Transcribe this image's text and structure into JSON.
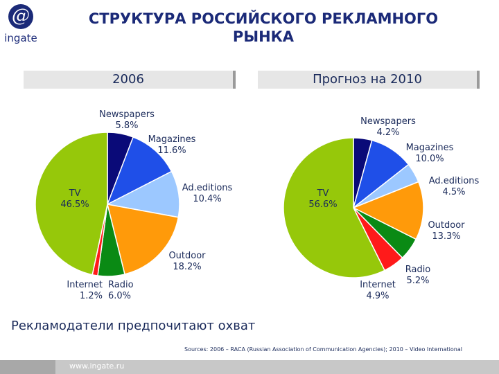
{
  "logo": {
    "symbol": "@",
    "text": "ingate"
  },
  "title": "СТРУКТУРА РОССИЙСКОГО РЕКЛАМНОГО РЫНКА",
  "tagline": "Рекламодатели предпочитают охват",
  "sources": "Sources: 2006 – RACA (Russian Association of Communication Agencies); 2010 – Video International",
  "footer": {
    "url": "www.ingate.ru"
  },
  "chart_data": [
    {
      "type": "pie",
      "title": "2006",
      "start_angle_deg": 0,
      "slices": [
        {
          "label": "Newspapers",
          "value": 5.8,
          "display": "5.8%",
          "color": "#0a0a78"
        },
        {
          "label": "Magazines",
          "value": 11.6,
          "display": "11.6%",
          "color": "#1f4fe8"
        },
        {
          "label": "Ad.editions",
          "value": 10.4,
          "display": "10.4%",
          "color": "#9cc8ff"
        },
        {
          "label": "Outdoor",
          "value": 18.2,
          "display": "18.2%",
          "color": "#ff9a0a"
        },
        {
          "label": "Radio",
          "value": 6.0,
          "display": "6.0%",
          "color": "#0a8a14"
        },
        {
          "label": "Internet",
          "value": 1.2,
          "display": "1.2%",
          "color": "#ff1a1a"
        },
        {
          "label": "TV",
          "value": 46.5,
          "display": "46.5%",
          "color": "#96c80a"
        }
      ]
    },
    {
      "type": "pie",
      "title": "Прогноз на 2010",
      "start_angle_deg": 0,
      "slices": [
        {
          "label": "Newspapers",
          "value": 4.2,
          "display": "4.2%",
          "color": "#0a0a78"
        },
        {
          "label": "Magazines",
          "value": 10.0,
          "display": "10.0%",
          "color": "#1f4fe8"
        },
        {
          "label": "Ad.editions",
          "value": 4.5,
          "display": "4.5%",
          "color": "#9cc8ff"
        },
        {
          "label": "Outdoor",
          "value": 13.3,
          "display": "13.3%",
          "color": "#ff9a0a"
        },
        {
          "label": "Radio",
          "value": 5.2,
          "display": "5.2%",
          "color": "#0a8a14"
        },
        {
          "label": "Internet",
          "value": 4.9,
          "display": "4.9%",
          "color": "#ff1a1a"
        },
        {
          "label": "TV",
          "value": 56.6,
          "display": "56.6%",
          "color": "#96c80a"
        }
      ]
    }
  ]
}
